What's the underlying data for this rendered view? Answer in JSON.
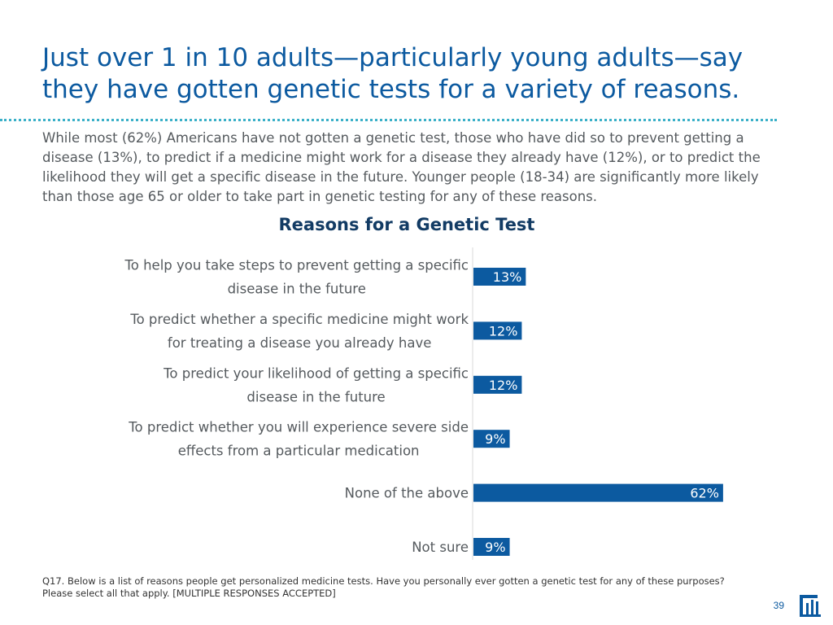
{
  "slide": {
    "title_lines": [
      "Just over 1 in 10 adults—particularly young adults—say",
      "they have gotten genetic tests for a variety of reasons."
    ],
    "subtitle": "While most (62%) Americans have not gotten a genetic test, those who have did so to prevent getting a disease (13%), to predict if a medicine might work for a disease they already have (12%), or to predict the likelihood they will get a specific disease in the future. Younger people (18-34) are significantly more likely than those age 65 or older to take part in genetic testing for any of these reasons.",
    "footnote": "Q17. Below is a list of reasons people get personalized medicine tests. Have you personally ever gotten a genetic test for any of these purposes? Please select all that apply. [MULTIPLE RESPONSES ACCEPTED]",
    "page_number": "39",
    "logo_icon": "brand-logo-icon"
  },
  "chart_data": {
    "type": "bar",
    "orientation": "horizontal",
    "title": "Reasons for a Genetic Test",
    "categories": [
      [
        "To help you take steps to prevent getting a specific",
        "disease in the future"
      ],
      [
        "To predict whether a specific medicine might work",
        "for treating a disease you already have"
      ],
      [
        "To predict your likelihood of getting a specific",
        "disease in the future"
      ],
      [
        "To predict whether you will experience severe side",
        "effects from a particular medication"
      ],
      [
        "None of the above"
      ],
      [
        "Not sure"
      ]
    ],
    "values": [
      13,
      12,
      12,
      9,
      62,
      9
    ],
    "value_labels": [
      "13%",
      "12%",
      "12%",
      "9%",
      "62%",
      "9%"
    ],
    "xlim": [
      0,
      100
    ],
    "bar_color": "#0c5aa0",
    "grid": false,
    "legend": "none"
  }
}
